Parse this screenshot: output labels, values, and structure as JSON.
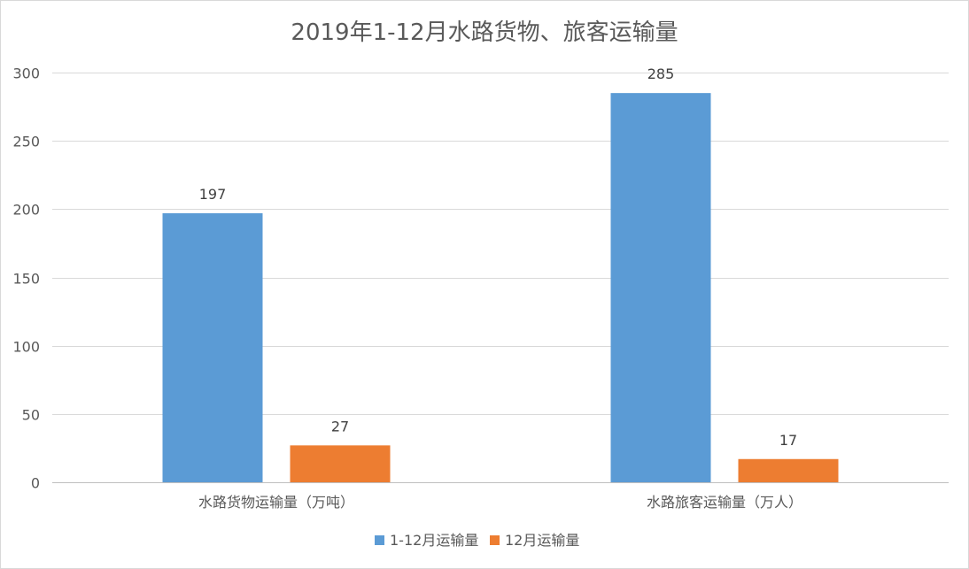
{
  "chart_data": {
    "type": "bar",
    "title": "2019年1-12月水路货物、旅客运输量",
    "categories": [
      "水路货物运输量（万吨）",
      "水路旅客运输量（万人）"
    ],
    "series": [
      {
        "name": "1-12月运输量",
        "values": [
          197,
          285
        ],
        "color": "#5b9bd5"
      },
      {
        "name": "12月运输量",
        "values": [
          27,
          17
        ],
        "color": "#ed7d31"
      }
    ],
    "ylim": [
      0,
      300
    ],
    "yticks": [
      0,
      50,
      100,
      150,
      200,
      250,
      300
    ],
    "grid": true,
    "legend": "bottom",
    "data_labels": true
  }
}
